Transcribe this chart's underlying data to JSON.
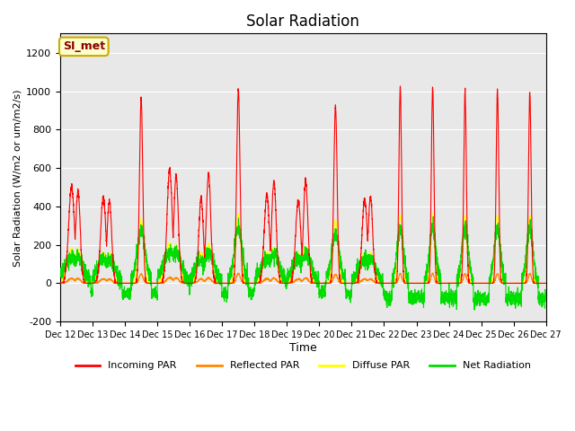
{
  "title": "Solar Radiation",
  "xlabel": "Time",
  "ylabel": "Solar Radiation (W/m2 or um/m2/s)",
  "ylim": [
    -200,
    1300
  ],
  "yticks": [
    -200,
    0,
    200,
    400,
    600,
    800,
    1000,
    1200
  ],
  "xtick_labels": [
    "Dec 12",
    "Dec 13",
    "Dec 14",
    "Dec 15",
    "Dec 16",
    "Dec 17",
    "Dec 18",
    "Dec 19",
    "Dec 20",
    "Dec 21",
    "Dec 22",
    "Dec 23",
    "Dec 24",
    "Dec 25",
    "Dec 26",
    "Dec 27"
  ],
  "annotation_text": "SI_met",
  "annotation_bg": "#ffffcc",
  "annotation_border": "#ccaa00",
  "annotation_text_color": "#8b0000",
  "bg_color": "#e8e8e8",
  "plot_bg": "#ebebeb",
  "colors": {
    "incoming": "#ff0000",
    "reflected": "#ff8800",
    "diffuse": "#ffff00",
    "net": "#00dd00"
  },
  "legend_labels": [
    "Incoming PAR",
    "Reflected PAR",
    "Diffuse PAR",
    "Net Radiation"
  ],
  "legend_colors": [
    "#ff0000",
    "#ff8800",
    "#ffff00",
    "#00dd00"
  ],
  "n_days": 15,
  "steps_per_day": 288,
  "daily_peaks": [
    500,
    450,
    960,
    590,
    570,
    1010,
    530,
    530,
    920,
    450,
    1020,
    1020,
    1000,
    1000,
    990
  ],
  "spike_widths": [
    0.08,
    0.07,
    0.05,
    0.06,
    0.06,
    0.05,
    0.07,
    0.07,
    0.05,
    0.07,
    0.04,
    0.04,
    0.04,
    0.04,
    0.04
  ]
}
